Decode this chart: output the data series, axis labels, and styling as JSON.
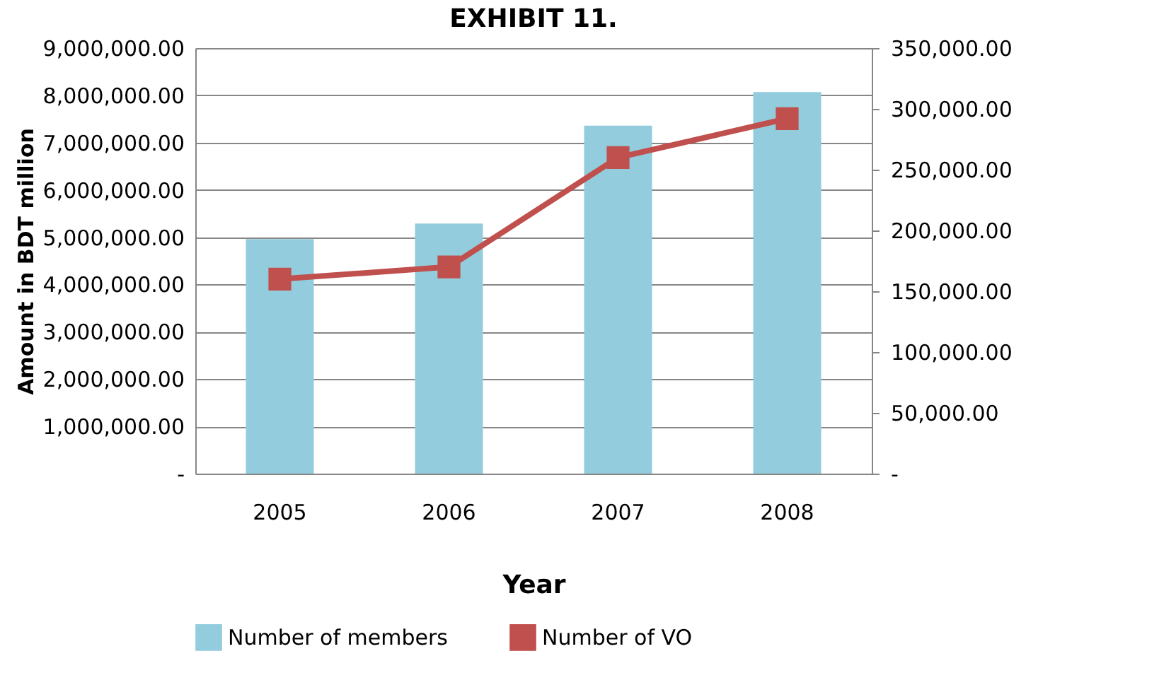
{
  "chart_data": {
    "type": "bar",
    "title": "EXHIBIT 11.",
    "xlabel": "Year",
    "ylabel": "Amount in BDT million",
    "categories": [
      "2005",
      "2006",
      "2007",
      "2008"
    ],
    "series": [
      {
        "name": "Number of members",
        "color": "#93cddd",
        "values": [
          4960000,
          5290000,
          7360000,
          8070000
        ]
      },
      {
        "name": "Number of VO",
        "type": "line",
        "axis": "y2",
        "color": "#c0504d",
        "values": [
          160000,
          170000,
          260000,
          292000
        ]
      }
    ],
    "ylim": [
      0,
      9000000
    ],
    "yticks": [
      {
        "value": 0,
        "label": "-"
      },
      {
        "value": 1000000,
        "label": "1,000,000.00"
      },
      {
        "value": 2000000,
        "label": "2,000,000.00"
      },
      {
        "value": 3000000,
        "label": "3,000,000.00"
      },
      {
        "value": 4000000,
        "label": "4,000,000.00"
      },
      {
        "value": 5000000,
        "label": "5,000,000.00"
      },
      {
        "value": 6000000,
        "label": "6,000,000.00"
      },
      {
        "value": 7000000,
        "label": "7,000,000.00"
      },
      {
        "value": 8000000,
        "label": "8,000,000.00"
      },
      {
        "value": 9000000,
        "label": "9,000,000.00"
      }
    ],
    "y2lim": [
      0,
      350000
    ],
    "y2ticks": [
      {
        "value": 0,
        "label": "-"
      },
      {
        "value": 50000,
        "label": "50,000.00"
      },
      {
        "value": 100000,
        "label": "100,000.00"
      },
      {
        "value": 150000,
        "label": "150,000.00"
      },
      {
        "value": 200000,
        "label": "200,000.00"
      },
      {
        "value": 250000,
        "label": "250,000.00"
      },
      {
        "value": 300000,
        "label": "300,000.00"
      },
      {
        "value": 350000,
        "label": "350,000.00"
      }
    ],
    "grid": "y",
    "legend": "bottom",
    "marker": "square",
    "line_style": "solid"
  }
}
